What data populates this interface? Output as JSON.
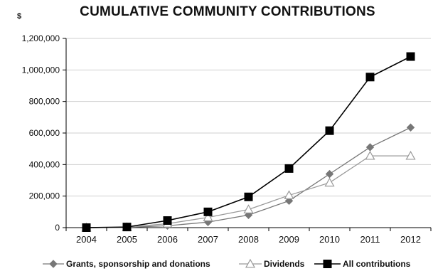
{
  "chart_data": {
    "type": "line",
    "title": "CUMULATIVE COMMUNITY CONTRIBUTIONS",
    "ylabel": "$",
    "xlabel": "",
    "categories": [
      "2004",
      "2005",
      "2006",
      "2007",
      "2008",
      "2009",
      "2010",
      "2011",
      "2012"
    ],
    "ylim": [
      0,
      1200000
    ],
    "yticks": [
      0,
      200000,
      400000,
      600000,
      800000,
      1000000,
      1200000
    ],
    "ytick_labels": [
      "0",
      "200,000",
      "400,000",
      "600,000",
      "800,000",
      "1,000,000",
      "1,200,000"
    ],
    "grid": "horizontal",
    "legend_position": "bottom",
    "series": [
      {
        "name": "Grants, sponsorship and donations",
        "marker": "diamond",
        "color": "#777777",
        "values": [
          0,
          2000,
          12000,
          35000,
          80000,
          170000,
          340000,
          510000,
          635000
        ]
      },
      {
        "name": "Dividends",
        "marker": "triangle-open",
        "color": "#999999",
        "values": [
          0,
          2000,
          25000,
          65000,
          115000,
          205000,
          285000,
          455000,
          455000
        ]
      },
      {
        "name": "All contributions",
        "marker": "square",
        "color": "#000000",
        "values": [
          0,
          4000,
          45000,
          100000,
          195000,
          375000,
          615000,
          955000,
          1085000
        ]
      }
    ]
  }
}
